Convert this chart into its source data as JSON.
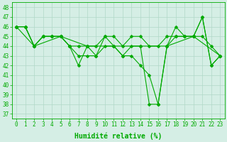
{
  "series": [
    {
      "x": [
        0,
        1,
        2,
        3,
        4,
        5,
        6,
        7,
        8,
        9,
        10,
        11,
        12,
        13,
        14,
        15,
        16,
        17,
        18,
        19,
        20,
        21,
        22,
        23
      ],
      "y": [
        46,
        46,
        44,
        45,
        45,
        45,
        44,
        42,
        44,
        43,
        45,
        44,
        43,
        44,
        44,
        38,
        38,
        44,
        45,
        45,
        45,
        47,
        42,
        43
      ]
    },
    {
      "x": [
        0,
        1,
        2,
        3,
        4,
        5,
        6,
        7,
        8,
        9,
        10,
        11,
        12,
        13,
        14,
        15,
        16,
        17,
        18,
        19,
        20,
        21,
        22,
        23
      ],
      "y": [
        46,
        46,
        44,
        45,
        45,
        45,
        44,
        44,
        44,
        44,
        45,
        45,
        44,
        45,
        45,
        44,
        44,
        45,
        45,
        45,
        45,
        45,
        44,
        43
      ]
    },
    {
      "x": [
        0,
        1,
        2,
        3,
        4,
        5,
        6,
        7,
        8,
        9,
        10,
        11,
        12,
        13,
        14,
        15,
        16,
        17,
        18,
        19,
        20,
        21,
        22,
        23
      ],
      "y": [
        46,
        46,
        44,
        45,
        45,
        45,
        44,
        43,
        43,
        43,
        44,
        44,
        43,
        43,
        42,
        41,
        38,
        44,
        46,
        45,
        45,
        47,
        42,
        43
      ]
    },
    {
      "x": [
        0,
        2,
        5,
        8,
        11,
        14,
        17,
        20,
        23
      ],
      "y": [
        46,
        44,
        45,
        44,
        44,
        44,
        44,
        45,
        43
      ]
    }
  ],
  "line_color": "#00aa00",
  "marker": "D",
  "markersize": 2.5,
  "linewidth": 0.8,
  "bg_color": "#d5eee5",
  "grid_color": "#b0d8c8",
  "xlabel": "Humidité relative (%)",
  "xlabel_fontsize": 7,
  "ylabel_ticks": [
    37,
    38,
    39,
    40,
    41,
    42,
    43,
    44,
    45,
    46,
    47,
    48
  ],
  "xtick_labels": [
    "0",
    "1",
    "2",
    "3",
    "4",
    "5",
    "6",
    "7",
    "8",
    "9",
    "10",
    "11",
    "12",
    "13",
    "14",
    "15",
    "16",
    "17",
    "18",
    "19",
    "20",
    "21",
    "22",
    "23"
  ],
  "xlim": [
    -0.5,
    23.5
  ],
  "ylim": [
    36.5,
    48.5
  ],
  "tick_fontsize": 5.5
}
